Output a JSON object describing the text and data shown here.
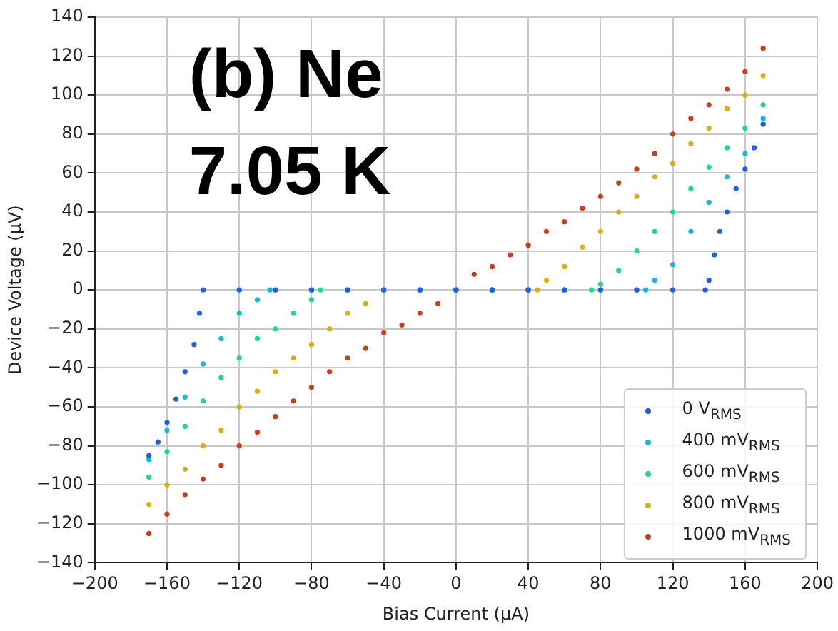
{
  "chart_data": {
    "type": "scatter",
    "xlabel": "Bias Current (μA)",
    "ylabel": "Device Voltage (μV)",
    "annotations": [
      "(b) Ne",
      "7.05 K"
    ],
    "xlim": [
      -200,
      200
    ],
    "xticks": [
      -200,
      -160,
      -120,
      -80,
      -40,
      0,
      40,
      80,
      120,
      160,
      200
    ],
    "ylim": [
      -140,
      140
    ],
    "yticks": [
      -140,
      -120,
      -100,
      -80,
      -60,
      -40,
      -20,
      0,
      20,
      40,
      60,
      80,
      100,
      120,
      140
    ],
    "grid": true,
    "legend": "bottom right",
    "marker": "circle",
    "series": [
      {
        "name": "0 V$_{RMS}$",
        "color": "#1f5fe0",
        "x": [
          -170,
          -165,
          -160,
          -155,
          -150,
          -145,
          -142,
          -140,
          -120,
          -100,
          -80,
          -60,
          -40,
          -20,
          0,
          20,
          40,
          60,
          80,
          100,
          120,
          138,
          140,
          143,
          146,
          150,
          155,
          160,
          165,
          170
        ],
        "values": [
          -85,
          -78,
          -68,
          -56,
          -42,
          -28,
          -12,
          0,
          0,
          0,
          0,
          0,
          0,
          0,
          0,
          0,
          0,
          0,
          0,
          0,
          0,
          0,
          5,
          18,
          30,
          40,
          52,
          62,
          73,
          85
        ]
      },
      {
        "name": "400 mV$_{RMS}$",
        "color": "#1ab8d8",
        "x": [
          -170,
          -160,
          -150,
          -140,
          -130,
          -120,
          -110,
          -103,
          -80,
          -60,
          -40,
          -20,
          0,
          20,
          40,
          60,
          80,
          100,
          105,
          110,
          120,
          130,
          140,
          150,
          160,
          170
        ],
        "values": [
          -87,
          -72,
          -55,
          -38,
          -25,
          -12,
          -5,
          0,
          0,
          0,
          0,
          0,
          0,
          0,
          0,
          0,
          0,
          0,
          0,
          5,
          13,
          30,
          45,
          58,
          70,
          88
        ]
      },
      {
        "name": "600 mV$_{RMS}$",
        "color": "#1ed890",
        "x": [
          -170,
          -160,
          -150,
          -140,
          -130,
          -120,
          -110,
          -100,
          -90,
          -80,
          -75,
          -60,
          -40,
          -20,
          0,
          20,
          40,
          60,
          75,
          80,
          90,
          100,
          110,
          120,
          130,
          140,
          150,
          160,
          170
        ],
        "values": [
          -96,
          -83,
          -70,
          -57,
          -45,
          -35,
          -25,
          -20,
          -12,
          -5,
          0,
          0,
          0,
          0,
          0,
          0,
          0,
          0,
          0,
          3,
          10,
          20,
          30,
          40,
          52,
          63,
          73,
          83,
          95
        ]
      },
      {
        "name": "800 mV$_{RMS}$",
        "color": "#d8b010",
        "x": [
          -170,
          -160,
          -150,
          -140,
          -130,
          -120,
          -110,
          -100,
          -90,
          -80,
          -70,
          -60,
          -50,
          -40,
          -20,
          0,
          20,
          45,
          50,
          60,
          70,
          80,
          90,
          100,
          110,
          120,
          130,
          140,
          150,
          160,
          170
        ],
        "values": [
          -110,
          -100,
          -92,
          -80,
          -72,
          -60,
          -52,
          -42,
          -35,
          -28,
          -20,
          -12,
          -7,
          0,
          0,
          0,
          0,
          0,
          5,
          12,
          22,
          30,
          40,
          48,
          58,
          65,
          75,
          83,
          93,
          100,
          110
        ]
      },
      {
        "name": "1000 mV$_{RMS}$",
        "color": "#c8401a",
        "x": [
          -170,
          -160,
          -150,
          -140,
          -130,
          -120,
          -110,
          -100,
          -90,
          -80,
          -70,
          -60,
          -50,
          -40,
          -30,
          -20,
          -10,
          0,
          10,
          20,
          30,
          40,
          50,
          60,
          70,
          80,
          90,
          100,
          110,
          120,
          130,
          140,
          150,
          160,
          170
        ],
        "values": [
          -125,
          -115,
          -105,
          -97,
          -90,
          -80,
          -73,
          -65,
          -57,
          -50,
          -42,
          -35,
          -30,
          -22,
          -18,
          -12,
          -7,
          0,
          8,
          12,
          18,
          23,
          30,
          35,
          42,
          48,
          55,
          62,
          70,
          80,
          88,
          95,
          103,
          112,
          124
        ]
      }
    ]
  }
}
